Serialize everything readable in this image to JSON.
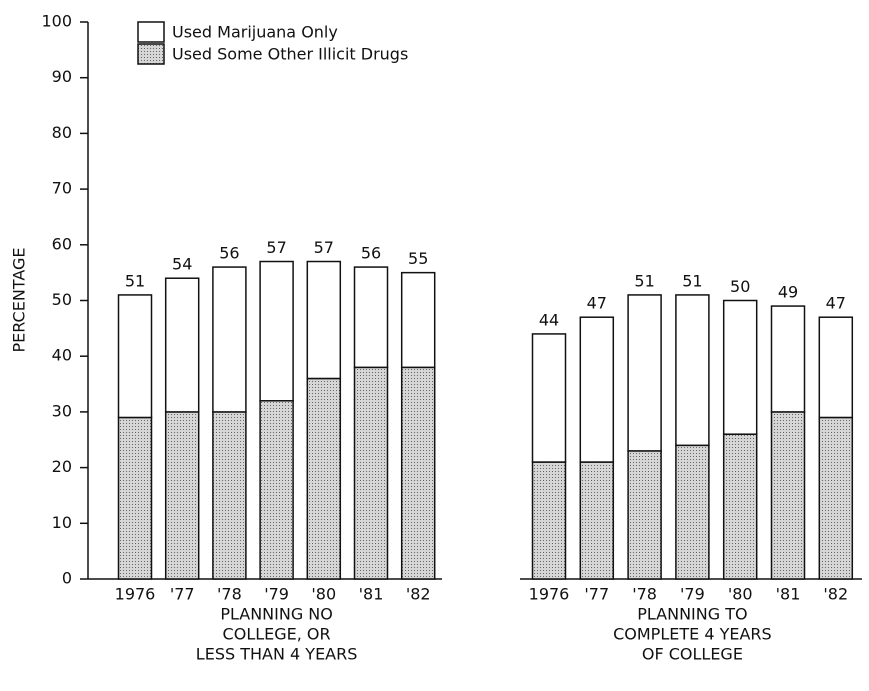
{
  "chart_data": [
    {
      "type": "bar",
      "ylabel": "PERCENTAGE",
      "ylim": [
        0,
        100
      ],
      "yticks": [
        0,
        10,
        20,
        30,
        40,
        50,
        60,
        70,
        80,
        90,
        100
      ],
      "categories": [
        "1976",
        "'77",
        "'78",
        "'79",
        "'80",
        "'81",
        "'82"
      ],
      "series": [
        {
          "name": "Used Some Other Illicit Drugs",
          "color": "#bcbcbc",
          "values": [
            29,
            30,
            30,
            32,
            36,
            38,
            38
          ]
        },
        {
          "name": "Used Marijuana Only",
          "color": "#ffffff",
          "values": [
            22,
            24,
            26,
            25,
            21,
            18,
            17
          ]
        }
      ],
      "totals": [
        51,
        54,
        56,
        57,
        57,
        56,
        55
      ],
      "xlabel": [
        "PLANNING NO",
        "COLLEGE, OR",
        "LESS THAN 4 YEARS"
      ]
    },
    {
      "type": "bar",
      "ylim": [
        0,
        100
      ],
      "categories": [
        "1976",
        "'77",
        "'78",
        "'79",
        "'80",
        "'81",
        "'82"
      ],
      "series": [
        {
          "name": "Used Some Other Illicit Drugs",
          "color": "#bcbcbc",
          "values": [
            21,
            21,
            23,
            24,
            26,
            30,
            29
          ]
        },
        {
          "name": "Used Marijuana Only",
          "color": "#ffffff",
          "values": [
            23,
            26,
            28,
            27,
            24,
            19,
            18
          ]
        }
      ],
      "totals": [
        44,
        47,
        51,
        51,
        50,
        49,
        47
      ],
      "xlabel": [
        "PLANNING TO",
        "COMPLETE 4 YEARS",
        "OF COLLEGE"
      ]
    }
  ]
}
